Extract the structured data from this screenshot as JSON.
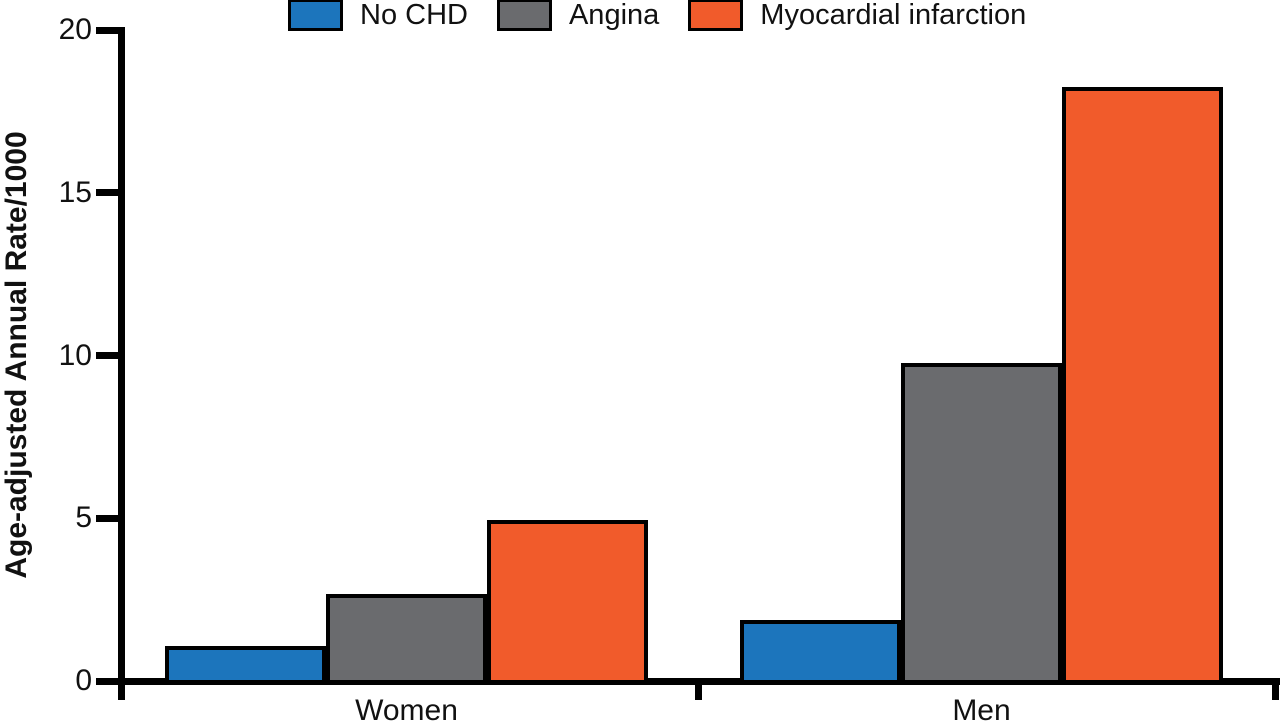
{
  "chart_data": {
    "type": "bar",
    "title": "",
    "xlabel": "",
    "ylabel": "Age-adjusted Annual Rate/1000",
    "categories": [
      "Women",
      "Men"
    ],
    "series": [
      {
        "name": "No CHD",
        "color": "#1C75BC",
        "values": [
          1.0,
          1.8
        ]
      },
      {
        "name": "Angina",
        "color": "#6A6B6E",
        "values": [
          2.6,
          9.7
        ]
      },
      {
        "name": "Myocardial infarction",
        "color": "#F15B2B",
        "values": [
          4.9,
          18.2
        ]
      }
    ],
    "ylim": [
      0,
      20
    ],
    "yticks": [
      0,
      5,
      10,
      15,
      20
    ],
    "grid": false,
    "legend_position": "top",
    "axis_color": "#000000",
    "bar_outline_color": "#000000",
    "background_color": "#ffffff"
  }
}
